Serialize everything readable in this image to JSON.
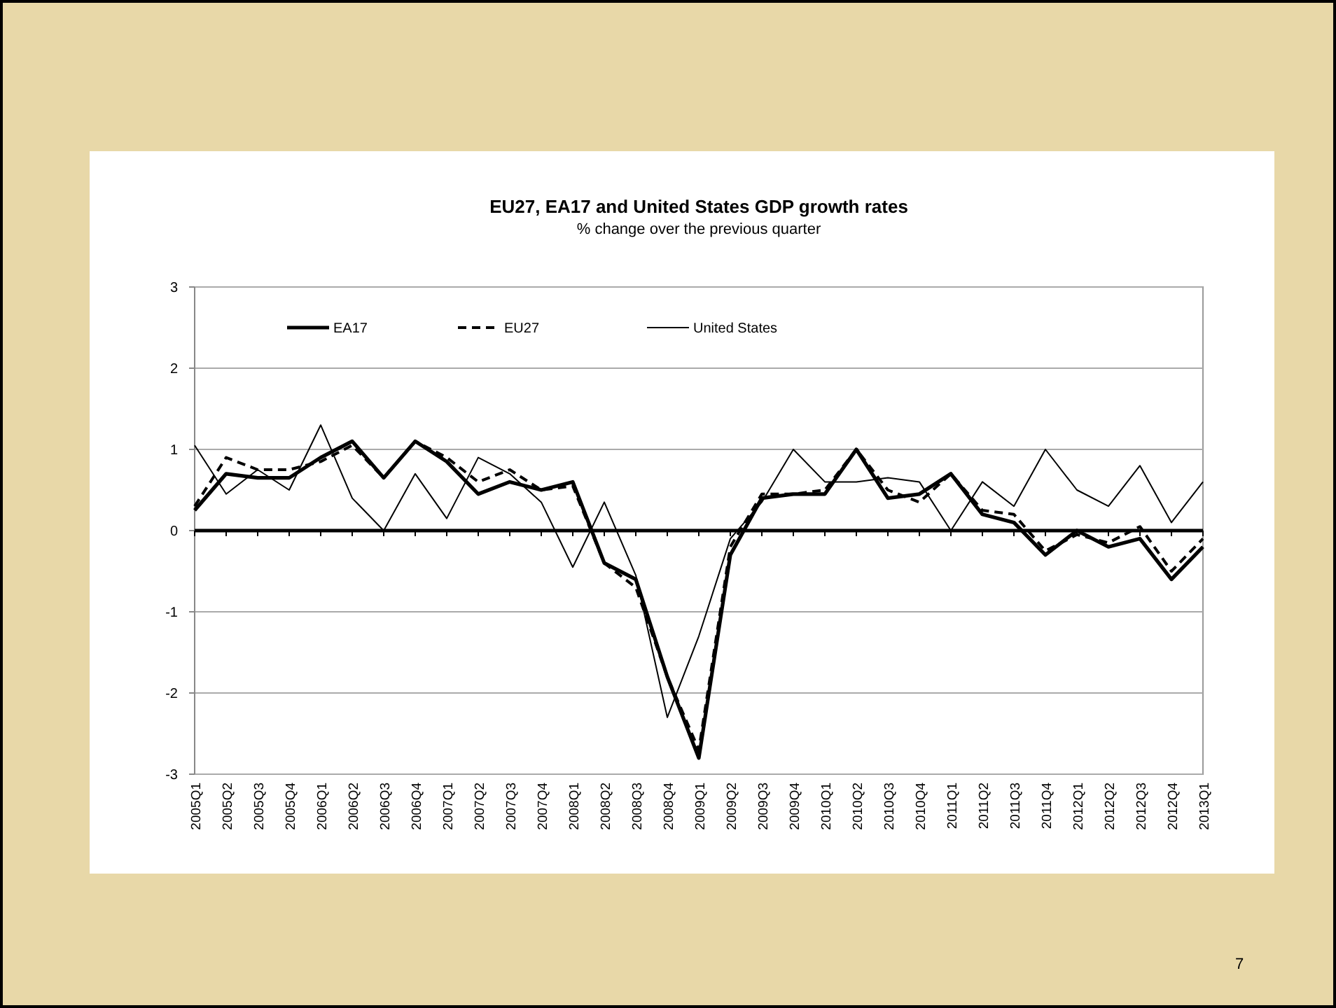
{
  "chart_data": {
    "type": "line",
    "title": "EU27, EA17 and United States GDP growth rates",
    "subtitle": "% change over the previous quarter",
    "categories": [
      "2005Q1",
      "2005Q2",
      "2005Q3",
      "2005Q4",
      "2006Q1",
      "2006Q2",
      "2006Q3",
      "2006Q4",
      "2007Q1",
      "2007Q2",
      "2007Q3",
      "2007Q4",
      "2008Q1",
      "2008Q2",
      "2008Q3",
      "2008Q4",
      "2009Q1",
      "2009Q2",
      "2009Q3",
      "2009Q4",
      "2010Q1",
      "2010Q2",
      "2010Q3",
      "2010Q4",
      "2011Q1",
      "2011Q2",
      "2011Q3",
      "2011Q4",
      "2012Q1",
      "2012Q2",
      "2012Q3",
      "2012Q4",
      "2013Q1"
    ],
    "series": [
      {
        "name": "EA17",
        "color": "#000000",
        "line_style": "solid",
        "values": [
          0.25,
          0.7,
          0.65,
          0.65,
          0.9,
          1.1,
          0.65,
          1.1,
          0.85,
          0.45,
          0.6,
          0.5,
          0.6,
          -0.4,
          -0.6,
          -1.8,
          -2.8,
          -0.3,
          0.4,
          0.45,
          0.45,
          1.0,
          0.4,
          0.45,
          0.7,
          0.2,
          0.1,
          -0.3,
          0.0,
          -0.2,
          -0.1,
          -0.6,
          -0.2
        ]
      },
      {
        "name": "EU27",
        "color": "#000000",
        "line_style": "dashed",
        "values": [
          0.3,
          0.9,
          0.75,
          0.75,
          0.85,
          1.05,
          0.65,
          1.1,
          0.9,
          0.6,
          0.75,
          0.5,
          0.55,
          -0.4,
          -0.7,
          -1.8,
          -2.7,
          -0.2,
          0.45,
          0.45,
          0.5,
          1.0,
          0.5,
          0.35,
          0.7,
          0.25,
          0.2,
          -0.25,
          -0.05,
          -0.15,
          0.05,
          -0.5,
          -0.1
        ]
      },
      {
        "name": "United States",
        "color": "#000000",
        "line_style": "solid",
        "values": [
          1.05,
          0.45,
          0.75,
          0.5,
          1.3,
          0.4,
          0.0,
          0.7,
          0.15,
          0.9,
          0.7,
          0.35,
          -0.45,
          0.35,
          -0.55,
          -2.3,
          -1.3,
          -0.1,
          0.35,
          1.0,
          0.6,
          0.6,
          0.65,
          0.6,
          0.0,
          0.6,
          0.3,
          1.0,
          0.5,
          0.3,
          0.8,
          0.1,
          0.6
        ]
      }
    ],
    "ylim": [
      -3,
      3
    ],
    "yticks": [
      -3,
      -2,
      -1,
      0,
      1,
      2,
      3
    ],
    "grid": "y",
    "legend": "top",
    "marker": "none",
    "ref_lines": [
      {
        "axis": "y",
        "value": 0,
        "label": null,
        "color": "#000000"
      }
    ],
    "annotations": [
      "7"
    ]
  }
}
